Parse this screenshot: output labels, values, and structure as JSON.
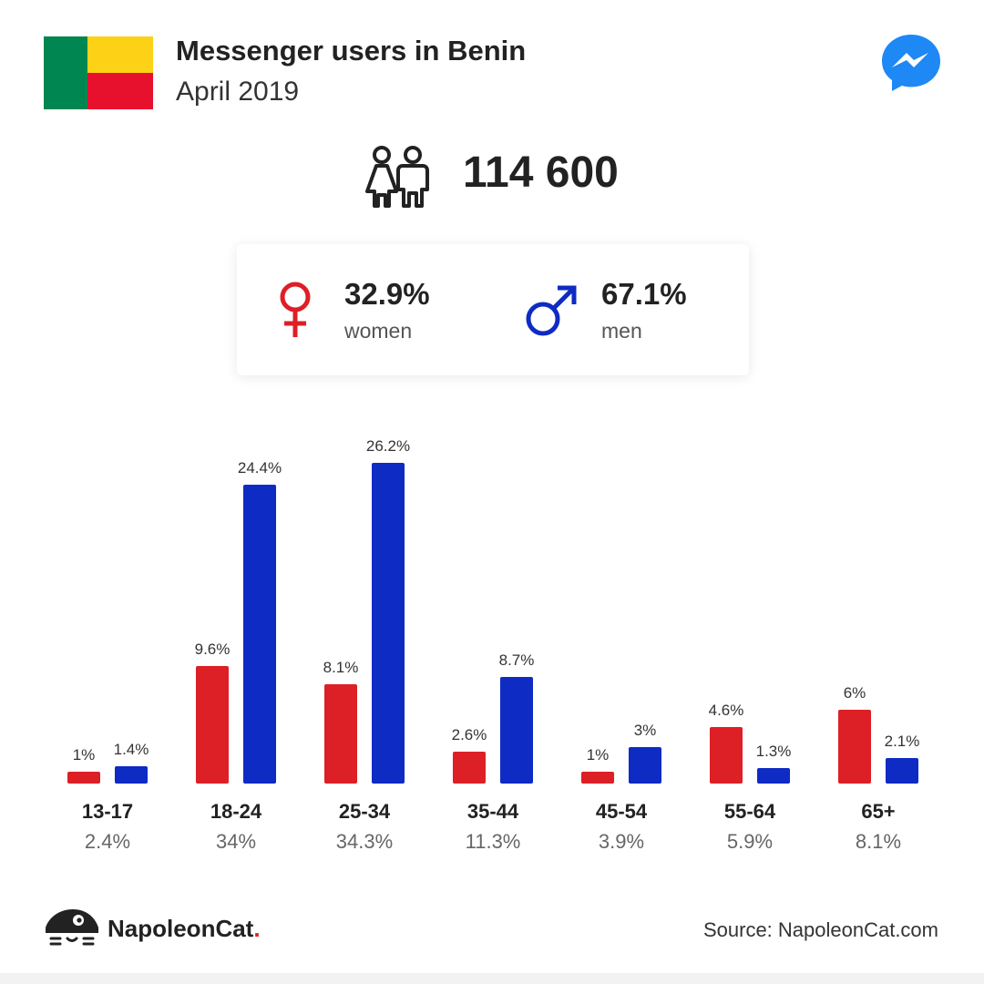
{
  "header": {
    "title": "Messenger users in Benin",
    "subtitle": "April 2019"
  },
  "icons": {
    "flag": "benin-flag-icon",
    "app": "messenger-icon",
    "users": "people-icon",
    "female": "female-symbol-icon",
    "male": "male-symbol-icon",
    "logo": "napoleoncat-logo-icon"
  },
  "colors": {
    "women": "#dd1f26",
    "men": "#0e2bc3",
    "messenger": "#1e88f5",
    "flag_green": "#008751",
    "flag_yellow": "#fcd116",
    "flag_red": "#e8112d"
  },
  "summary": {
    "total_users": "114 600",
    "women_pct": "32.9%",
    "women_label": "women",
    "men_pct": "67.1%",
    "men_label": "men"
  },
  "chart_data": {
    "type": "bar",
    "categories": [
      "13-17",
      "18-24",
      "25-34",
      "35-44",
      "45-54",
      "55-64",
      "65+"
    ],
    "category_totals": [
      "2.4%",
      "34%",
      "34.3%",
      "11.3%",
      "3.9%",
      "5.9%",
      "8.1%"
    ],
    "series": [
      {
        "values": [
          1,
          9.6,
          8.1,
          2.6,
          1,
          4.6,
          6
        ],
        "labels": [
          "1%",
          "9.6%",
          "8.1%",
          "2.6%",
          "1%",
          "4.6%",
          "6%"
        ]
      },
      {
        "values": [
          1.4,
          24.4,
          26.2,
          8.7,
          3,
          1.3,
          2.1
        ],
        "labels": [
          "1.4%",
          "24.4%",
          "26.2%",
          "8.7%",
          "3%",
          "1.3%",
          "2.1%"
        ]
      }
    ],
    "ylim": [
      0,
      26.2
    ],
    "grid": false,
    "legend": "none"
  },
  "footer": {
    "brand_name": "NapoleonCat",
    "brand_dot": ".",
    "source": "Source: NapoleonCat.com"
  }
}
